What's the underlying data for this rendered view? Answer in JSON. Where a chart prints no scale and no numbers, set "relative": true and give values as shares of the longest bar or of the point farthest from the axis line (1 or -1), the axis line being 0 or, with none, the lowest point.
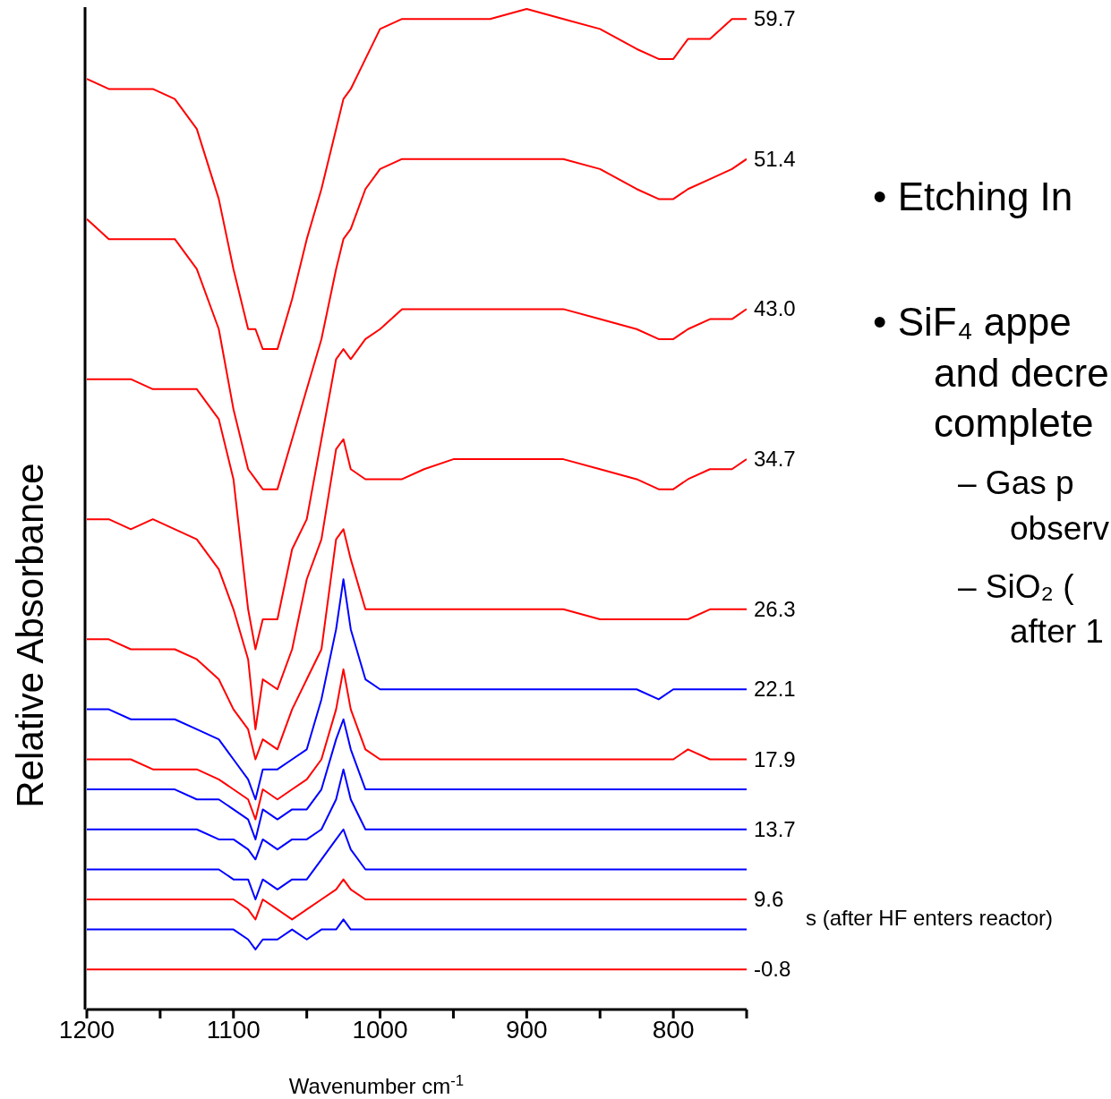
{
  "chart_data": {
    "type": "line",
    "relative": true,
    "xlabel": "Wavenumber cm$^{-1}$",
    "ylabel": "Relative Absorbance",
    "xlim": [
      1200,
      750
    ],
    "xticks": [
      1200,
      {
        "value": 1150,
        "label": null
      },
      1100,
      {
        "value": 1050,
        "label": null
      },
      1000,
      {
        "value": 950,
        "label": null
      },
      900,
      {
        "value": 850,
        "label": null
      },
      800,
      {
        "value": 750,
        "label": null
      }
    ],
    "x": [
      1200,
      1185,
      1170,
      1155,
      1140,
      1125,
      1110,
      1100,
      1090,
      1085,
      1080,
      1070,
      1060,
      1050,
      1040,
      1030,
      1025,
      1020,
      1010,
      1000,
      985,
      970,
      950,
      925,
      900,
      875,
      850,
      825,
      810,
      800,
      790,
      775,
      760,
      750
    ],
    "series": [
      {
        "name": "59.7",
        "color": "#ff0000",
        "values": [
          0.93,
          0.92,
          0.92,
          0.92,
          0.91,
          0.88,
          0.81,
          0.74,
          0.68,
          0.68,
          0.66,
          0.66,
          0.71,
          0.77,
          0.82,
          0.88,
          0.91,
          0.92,
          0.95,
          0.98,
          0.99,
          0.99,
          0.99,
          0.99,
          1.0,
          0.99,
          0.98,
          0.96,
          0.95,
          0.95,
          0.97,
          0.97,
          0.99,
          0.99
        ]
      },
      {
        "name": "51.4",
        "color": "#ff0000",
        "values": [
          0.79,
          0.77,
          0.77,
          0.77,
          0.77,
          0.74,
          0.68,
          0.6,
          0.54,
          0.53,
          0.52,
          0.52,
          0.57,
          0.62,
          0.67,
          0.74,
          0.77,
          0.78,
          0.82,
          0.84,
          0.85,
          0.85,
          0.85,
          0.85,
          0.85,
          0.85,
          0.84,
          0.82,
          0.81,
          0.81,
          0.82,
          0.83,
          0.84,
          0.85
        ]
      },
      {
        "name": "43.0",
        "color": "#ff0000",
        "values": [
          0.63,
          0.63,
          0.63,
          0.62,
          0.62,
          0.62,
          0.59,
          0.53,
          0.4,
          0.36,
          0.39,
          0.39,
          0.46,
          0.49,
          0.57,
          0.65,
          0.66,
          0.65,
          0.67,
          0.68,
          0.7,
          0.7,
          0.7,
          0.7,
          0.7,
          0.7,
          0.69,
          0.68,
          0.67,
          0.67,
          0.68,
          0.69,
          0.69,
          0.7
        ]
      },
      {
        "name": "34.7",
        "color": "#ff0000",
        "values": [
          0.49,
          0.49,
          0.48,
          0.49,
          0.48,
          0.47,
          0.44,
          0.4,
          0.35,
          0.28,
          0.33,
          0.32,
          0.36,
          0.43,
          0.47,
          0.56,
          0.57,
          0.54,
          0.53,
          0.53,
          0.53,
          0.54,
          0.55,
          0.55,
          0.55,
          0.55,
          0.54,
          0.53,
          0.52,
          0.52,
          0.53,
          0.54,
          0.54,
          0.55
        ]
      },
      {
        "name": "26.3",
        "color": "#ff0000",
        "values": [
          0.37,
          0.37,
          0.36,
          0.36,
          0.36,
          0.35,
          0.33,
          0.3,
          0.28,
          0.25,
          0.27,
          0.26,
          0.3,
          0.33,
          0.36,
          0.47,
          0.48,
          0.45,
          0.4,
          0.4,
          0.4,
          0.4,
          0.4,
          0.4,
          0.4,
          0.4,
          0.39,
          0.39,
          0.39,
          0.39,
          0.39,
          0.4,
          0.4,
          0.4
        ]
      },
      {
        "name": "22.1",
        "color": "#0000ff",
        "values": [
          0.3,
          0.3,
          0.29,
          0.29,
          0.29,
          0.28,
          0.27,
          0.25,
          0.23,
          0.21,
          0.24,
          0.24,
          0.25,
          0.26,
          0.31,
          0.38,
          0.43,
          0.38,
          0.33,
          0.32,
          0.32,
          0.32,
          0.32,
          0.32,
          0.32,
          0.32,
          0.32,
          0.32,
          0.31,
          0.32,
          0.32,
          0.32,
          0.32,
          0.32
        ]
      },
      {
        "name": "17.9",
        "color": "#ff0000",
        "values": [
          0.25,
          0.25,
          0.25,
          0.24,
          0.24,
          0.24,
          0.23,
          0.22,
          0.21,
          0.19,
          0.22,
          0.21,
          0.22,
          0.23,
          0.25,
          0.3,
          0.34,
          0.3,
          0.26,
          0.25,
          0.25,
          0.25,
          0.25,
          0.25,
          0.25,
          0.25,
          0.25,
          0.25,
          0.25,
          0.25,
          0.26,
          0.25,
          0.25,
          0.25
        ]
      },
      {
        "color": "#0000ff",
        "values": [
          0.22,
          0.22,
          0.22,
          0.22,
          0.22,
          0.21,
          0.21,
          0.2,
          0.19,
          0.17,
          0.2,
          0.19,
          0.2,
          0.2,
          0.22,
          0.27,
          0.29,
          0.26,
          0.22,
          0.22,
          0.22,
          0.22,
          0.22,
          0.22,
          0.22,
          0.22,
          0.22,
          0.22,
          0.22,
          0.22,
          0.22,
          0.22,
          0.22,
          0.22
        ]
      },
      {
        "name": "13.7",
        "color": "#0000ff",
        "values": [
          0.18,
          0.18,
          0.18,
          0.18,
          0.18,
          0.18,
          0.17,
          0.17,
          0.16,
          0.15,
          0.17,
          0.16,
          0.17,
          0.17,
          0.18,
          0.21,
          0.24,
          0.21,
          0.18,
          0.18,
          0.18,
          0.18,
          0.18,
          0.18,
          0.18,
          0.18,
          0.18,
          0.18,
          0.18,
          0.18,
          0.18,
          0.18,
          0.18,
          0.18
        ]
      },
      {
        "color": "#0000ff",
        "values": [
          0.14,
          0.14,
          0.14,
          0.14,
          0.14,
          0.14,
          0.14,
          0.13,
          0.13,
          0.11,
          0.13,
          0.12,
          0.13,
          0.13,
          0.15,
          0.17,
          0.18,
          0.16,
          0.14,
          0.14,
          0.14,
          0.14,
          0.14,
          0.14,
          0.14,
          0.14,
          0.14,
          0.14,
          0.14,
          0.14,
          0.14,
          0.14,
          0.14,
          0.14
        ]
      },
      {
        "name": "9.6",
        "color": "#ff0000",
        "values": [
          0.11,
          0.11,
          0.11,
          0.11,
          0.11,
          0.11,
          0.11,
          0.11,
          0.1,
          0.09,
          0.11,
          0.1,
          0.09,
          0.1,
          0.11,
          0.12,
          0.13,
          0.12,
          0.11,
          0.11,
          0.11,
          0.11,
          0.11,
          0.11,
          0.11,
          0.11,
          0.11,
          0.11,
          0.11,
          0.11,
          0.11,
          0.11,
          0.11,
          0.11
        ]
      },
      {
        "color": "#0000ff",
        "values": [
          0.08,
          0.08,
          0.08,
          0.08,
          0.08,
          0.08,
          0.08,
          0.08,
          0.07,
          0.06,
          0.07,
          0.07,
          0.08,
          0.07,
          0.08,
          0.08,
          0.09,
          0.08,
          0.08,
          0.08,
          0.08,
          0.08,
          0.08,
          0.08,
          0.08,
          0.08,
          0.08,
          0.08,
          0.08,
          0.08,
          0.08,
          0.08,
          0.08,
          0.08
        ]
      },
      {
        "name": "-0.8",
        "color": "#ff0000",
        "values": [
          0.04,
          0.04,
          0.04,
          0.04,
          0.04,
          0.04,
          0.04,
          0.04,
          0.04,
          0.04,
          0.04,
          0.04,
          0.04,
          0.04,
          0.04,
          0.04,
          0.04,
          0.04,
          0.04,
          0.04,
          0.04,
          0.04,
          0.04,
          0.04,
          0.04,
          0.04,
          0.04,
          0.04,
          0.04,
          0.04,
          0.04,
          0.04,
          0.04,
          0.04
        ]
      }
    ],
    "annotations": [
      "s (after HF enters reactor)",
      "• Etching In",
      "• SiF₄ appe",
      "and decre",
      "complete",
      "– Gas p",
      "observ",
      "– SiO₂ (",
      "after 1"
    ]
  }
}
